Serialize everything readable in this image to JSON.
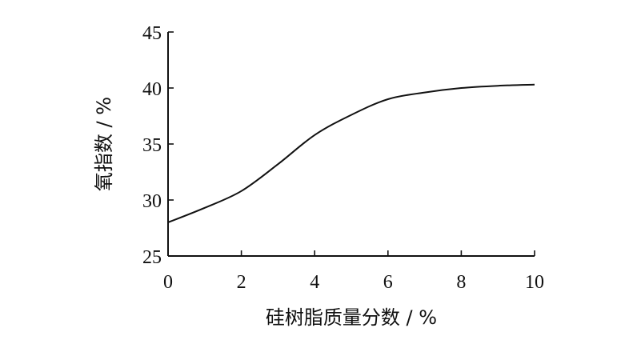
{
  "chart_data": {
    "type": "line",
    "xlabel": "硅树脂质量分数 / %",
    "ylabel": "氧指数 / %",
    "xlim": [
      0,
      10
    ],
    "ylim": [
      25,
      45
    ],
    "xticks": [
      "0",
      "2",
      "4",
      "6",
      "8",
      "10"
    ],
    "yticks": [
      "25",
      "30",
      "35",
      "40",
      "45"
    ],
    "grid": false,
    "series": [
      {
        "x": [
          0,
          1,
          2,
          3,
          4,
          5,
          6,
          7,
          8,
          9,
          10
        ],
        "y": [
          28.0,
          29.3,
          30.8,
          33.2,
          35.8,
          37.6,
          39.0,
          39.6,
          40.0,
          40.2,
          40.3
        ]
      }
    ]
  }
}
